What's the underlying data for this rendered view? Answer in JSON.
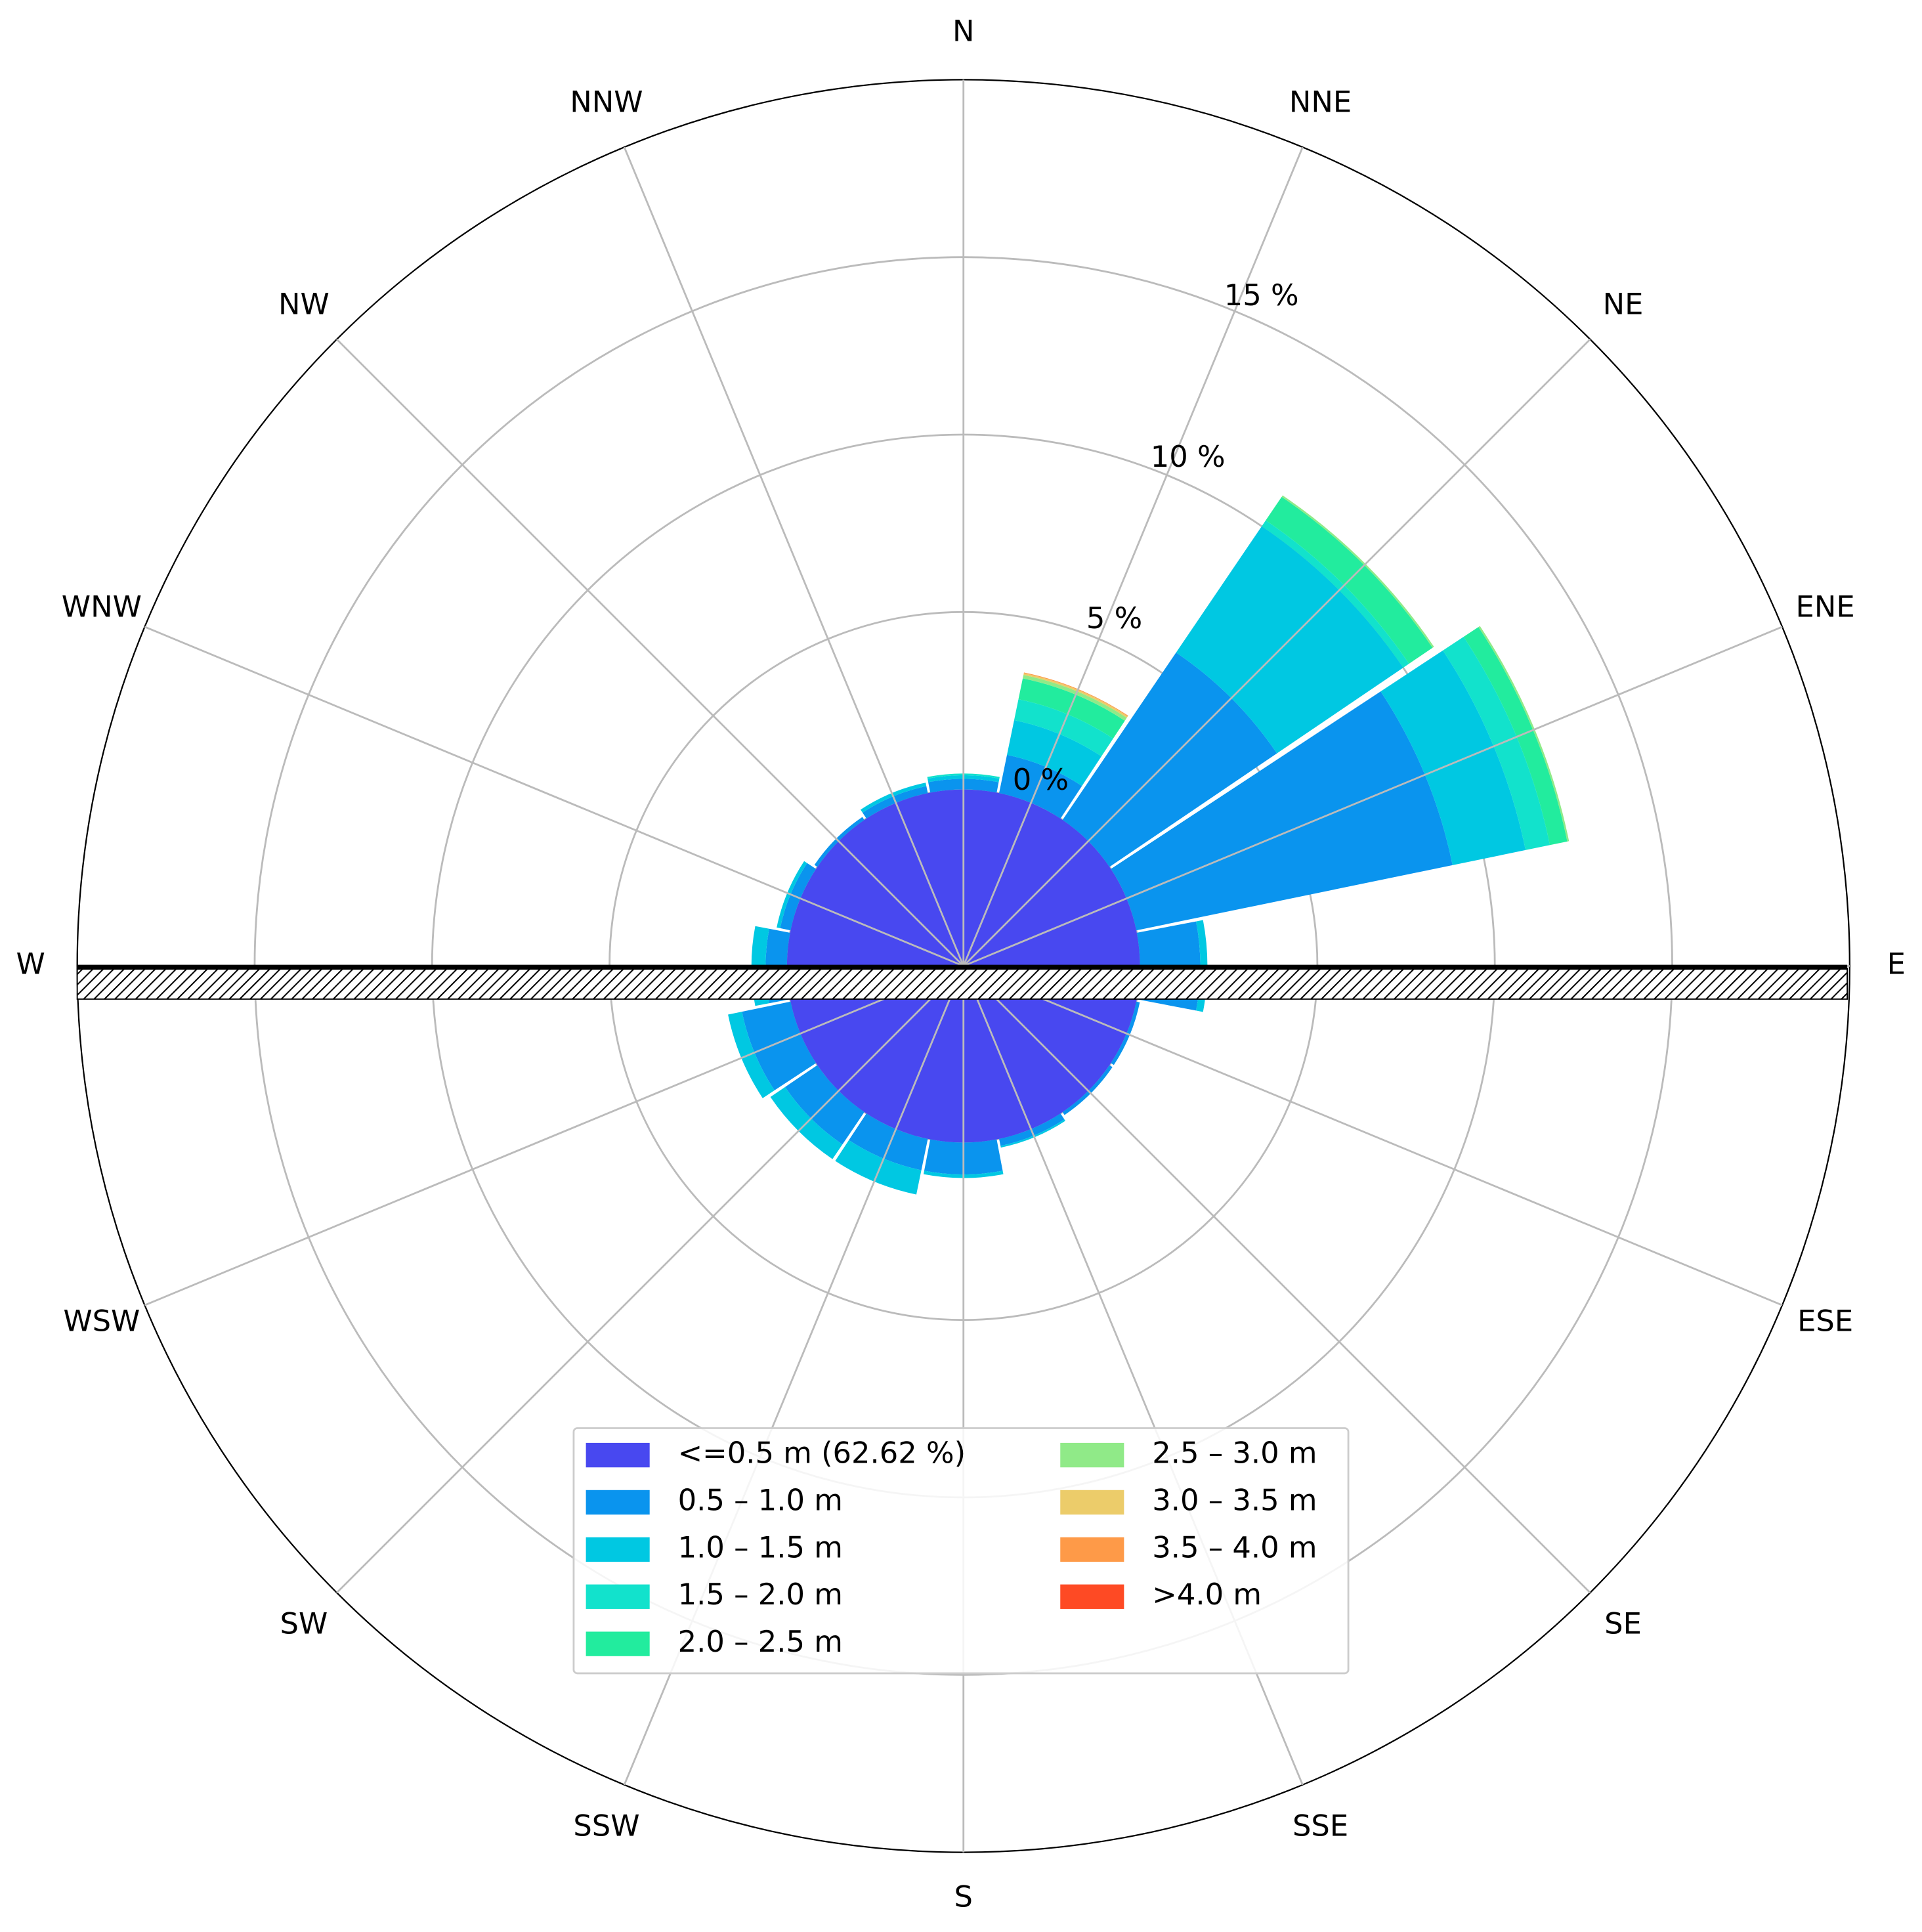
{
  "chart_data": {
    "type": "windrose",
    "categories": [
      "N",
      "NNE",
      "NE",
      "ENE",
      "E",
      "ESE",
      "SE",
      "SSE",
      "S",
      "SSW",
      "SW",
      "WSW",
      "W",
      "WNW",
      "NW",
      "NNW"
    ],
    "calm": {
      "name": "<=0.5 m (62.62 %)",
      "color": "#4848f0",
      "value": 62.62
    },
    "series": [
      {
        "name": "0.5 – 1.0 m",
        "color": "#0a94ee",
        "values": [
          0.3,
          1.1,
          5.7,
          9.1,
          1.7,
          0.1,
          0.1,
          0.2,
          0.9,
          0.9,
          1.1,
          1.4,
          0.6,
          0.3,
          0.1,
          0.2
        ]
      },
      {
        "name": "1.0 – 1.5 m",
        "color": "#00c8e2",
        "values": [
          0.1,
          1.0,
          4.3,
          2.1,
          0.2,
          0,
          0,
          0.05,
          0.1,
          0.7,
          0.5,
          0.4,
          0.4,
          0.1,
          0,
          0.1
        ]
      },
      {
        "name": "1.5 – 2.0 m",
        "color": "#12e2cc",
        "values": [
          0.05,
          0.6,
          0.2,
          0.7,
          0,
          0,
          0,
          0,
          0,
          0,
          0,
          0,
          0,
          0,
          0,
          0
        ]
      },
      {
        "name": "2.0 – 2.5 m",
        "color": "#22ec9e",
        "values": [
          0,
          0.6,
          0.8,
          0.5,
          0,
          0,
          0,
          0,
          0,
          0,
          0,
          0,
          0,
          0,
          0,
          0
        ]
      },
      {
        "name": "2.5 – 3.0 m",
        "color": "#90ea88",
        "values": [
          0,
          0.1,
          0.05,
          0.05,
          0,
          0,
          0,
          0,
          0,
          0,
          0,
          0,
          0,
          0,
          0,
          0
        ]
      },
      {
        "name": "3.0 – 3.5 m",
        "color": "#eccc6a",
        "values": [
          0,
          0.05,
          0,
          0,
          0,
          0,
          0,
          0,
          0,
          0,
          0,
          0,
          0,
          0,
          0,
          0
        ]
      },
      {
        "name": "3.5 – 4.0 m",
        "color": "#fe9a48",
        "values": [
          0,
          0.02,
          0,
          0,
          0,
          0,
          0,
          0,
          0,
          0,
          0,
          0,
          0,
          0,
          0,
          0
        ]
      },
      {
        "name": ">4.0 m",
        "color": "#fe4a24",
        "values": [
          0,
          0,
          0,
          0,
          0,
          0,
          0,
          0,
          0,
          0,
          0,
          0,
          0,
          0,
          0,
          0
        ]
      }
    ],
    "rlim": [
      0,
      20
    ],
    "rticks": [
      {
        "value": 0,
        "label": "0 %"
      },
      {
        "value": 5,
        "label": "5 %"
      },
      {
        "value": 10,
        "label": "10 %"
      },
      {
        "value": 15,
        "label": "15 %"
      }
    ],
    "grid": true
  }
}
